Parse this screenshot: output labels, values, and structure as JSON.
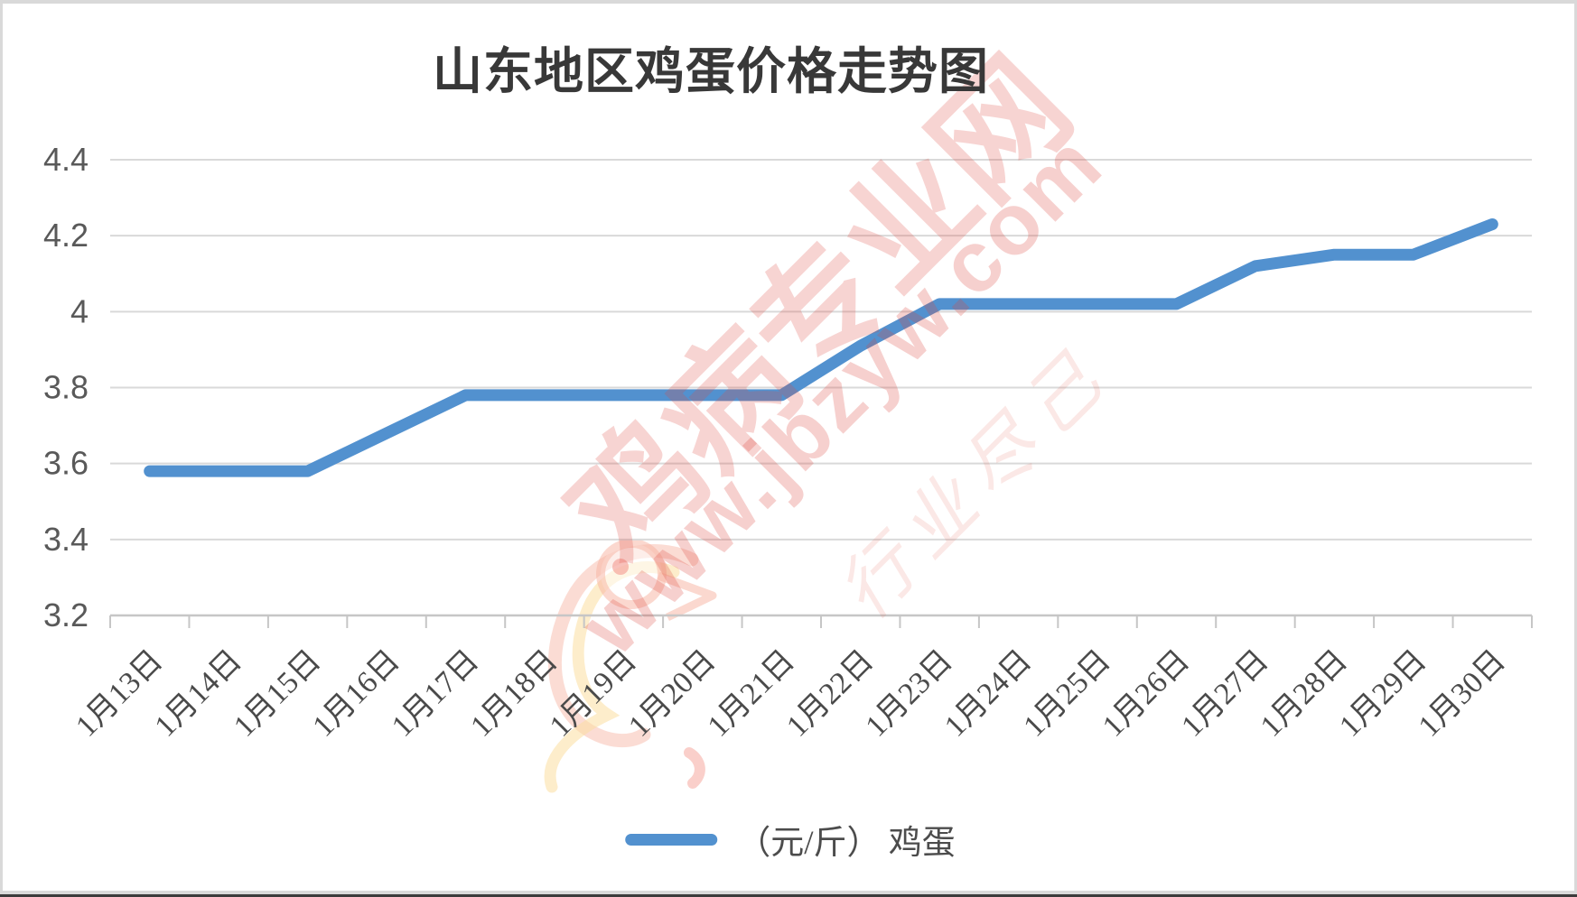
{
  "title": "山东地区鸡蛋价格走势图",
  "legend": {
    "label": "（元/斤） 鸡蛋"
  },
  "watermark": {
    "site_name": "鸡病专业网",
    "url": "www.jbzyw.com",
    "slogan": "行业尽己",
    "logo": "rooster-head-swoosh",
    "color": "#DE4A41"
  },
  "y_axis": {
    "tick_labels_top_to_bottom": [
      "4.4",
      "4.2",
      "4",
      "3.8",
      "3.6",
      "3.4",
      "3.2"
    ]
  },
  "chart_data": {
    "type": "line",
    "title": "山东地区鸡蛋价格走势图",
    "categories": [
      "1月13日",
      "1月14日",
      "1月15日",
      "1月16日",
      "1月17日",
      "1月18日",
      "1月19日",
      "1月20日",
      "1月21日",
      "1月22日",
      "1月23日",
      "1月24日",
      "1月25日",
      "1月26日",
      "1月27日",
      "1月28日",
      "1月29日",
      "1月30日"
    ],
    "series": [
      {
        "name": "（元/斤） 鸡蛋",
        "values": [
          3.58,
          3.58,
          3.58,
          3.68,
          3.78,
          3.78,
          3.78,
          3.78,
          3.78,
          3.91,
          4.02,
          4.02,
          4.02,
          4.02,
          4.12,
          4.15,
          4.15,
          4.23
        ],
        "color": "#5291CF"
      }
    ],
    "ylim": [
      3.2,
      4.4
    ],
    "y_ticks": [
      3.2,
      3.4,
      3.6,
      3.8,
      4,
      4.2,
      4.4
    ],
    "y_tick_labels": [
      "3.2",
      "3.4",
      "3.6",
      "3.8",
      "4",
      "4.2",
      "4.4"
    ],
    "xlabel": "",
    "ylabel": "",
    "grid": true,
    "legend_position": "bottom",
    "x_label_rotation": -45
  },
  "colors": {
    "line": "#5291CF",
    "gridline": "#D9D9D9",
    "axis": "#C6C6C6",
    "tick_label": "#595959",
    "title_text": "#383838"
  }
}
